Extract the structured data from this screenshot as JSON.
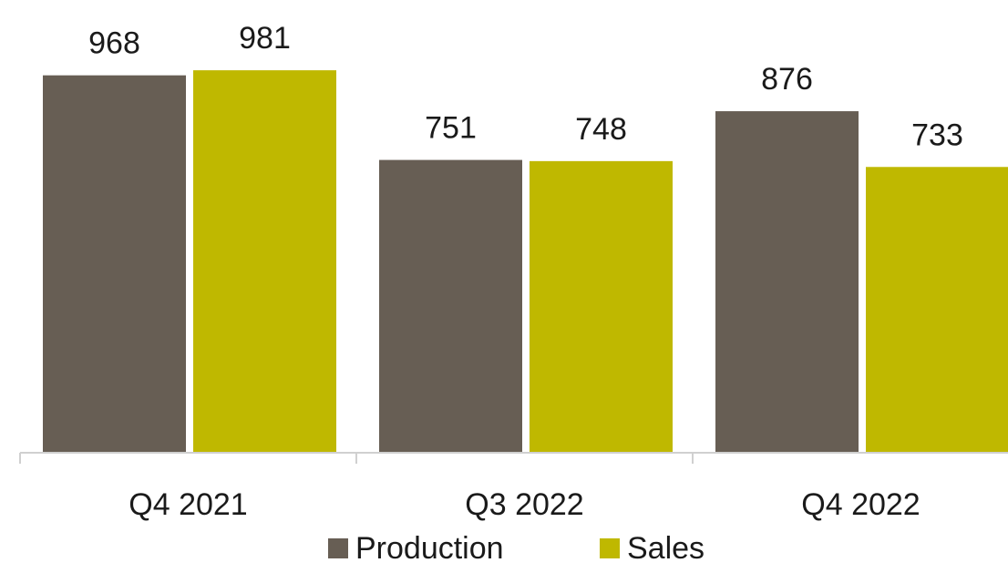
{
  "chart_data": {
    "type": "bar",
    "title": "",
    "xlabel": "",
    "ylabel": "",
    "categories": [
      "Q4 2021",
      "Q3 2022",
      "Q4 2022"
    ],
    "series": [
      {
        "name": "Production",
        "values": [
          968,
          751,
          876
        ],
        "color": "#675e54"
      },
      {
        "name": "Sales",
        "values": [
          981,
          748,
          733
        ],
        "color": "#bfb800"
      }
    ],
    "ylim": [
      0,
      1000
    ],
    "grid": false,
    "y_axis_visible": false,
    "data_labels": true,
    "legend": "bottom-center",
    "axis_color": "#d0d0d0"
  }
}
